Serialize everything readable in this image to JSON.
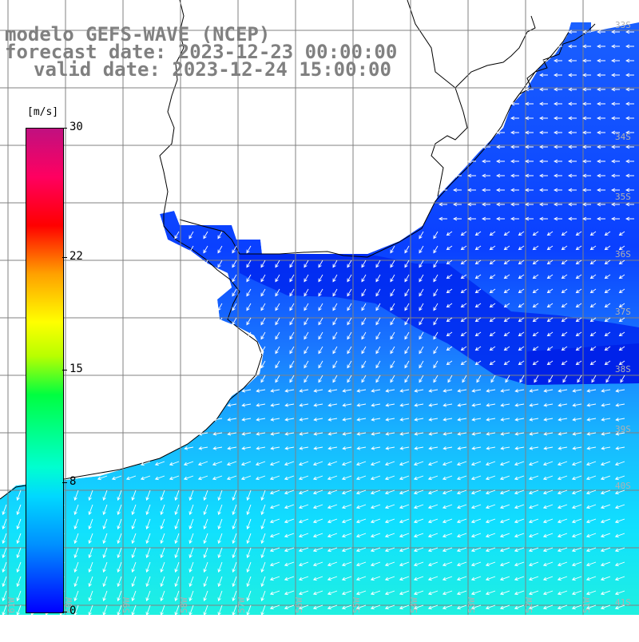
{
  "title": {
    "line1": "modelo GEFS-WAVE (NCEP)",
    "line2": "forecast date: 2023-12-23 00:00:00",
    "line3": "valid date: 2023-12-24 15:00:00"
  },
  "colorbar": {
    "unit": "[m/s]",
    "ticks": [
      {
        "label": "30",
        "value": 30
      },
      {
        "label": "22",
        "value": 22
      },
      {
        "label": "15",
        "value": 15
      },
      {
        "label": "8",
        "value": 8
      },
      {
        "label": "0",
        "value": 0
      }
    ],
    "colors": [
      "#0000ff",
      "#0090ff",
      "#00d8ff",
      "#00ffd0",
      "#00ff40",
      "#b8ff00",
      "#ffff00",
      "#ffa000",
      "#ff0000",
      "#ff0060",
      "#c01080"
    ]
  },
  "lat_labels": [
    "33S",
    "34S",
    "35S",
    "36S",
    "37S",
    "38S",
    "39S",
    "40S",
    "41S"
  ],
  "lon_labels": [
    "61W",
    "60W",
    "59W",
    "58W",
    "57W",
    "56W",
    "55W",
    "54W",
    "53W",
    "52W",
    "51W"
  ],
  "map": {
    "wind_direction": "south-westward",
    "dominant_color_north": "#0a3cff",
    "dominant_color_south": "#00e0ff",
    "land_color": "#ffffff",
    "grid_color": "#808080"
  }
}
